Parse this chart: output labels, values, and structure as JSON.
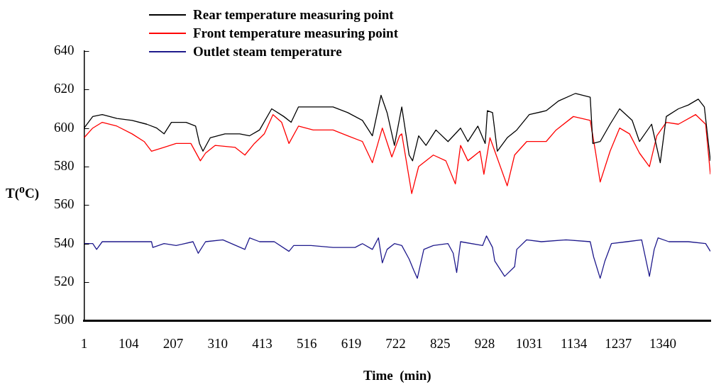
{
  "chart_data": {
    "type": "line",
    "xlabel": "Time  (min)",
    "ylabel": "T($^{o}$C)",
    "xlim": [
      1,
      1450
    ],
    "xticks": [
      1,
      104,
      207,
      310,
      413,
      516,
      619,
      722,
      825,
      928,
      1031,
      1134,
      1237,
      1340
    ],
    "ylim": [
      500,
      640
    ],
    "yticks": [
      500,
      520,
      540,
      560,
      580,
      600,
      620,
      640
    ],
    "grid": false,
    "legend": "top left",
    "marker": "none",
    "line_style": "solid",
    "series": [
      {
        "name": "Rear temperature  measuring  point",
        "color": "#000000",
        "x": [
          1,
          21,
          43,
          77,
          112,
          146,
          169,
          186,
          203,
          237,
          259,
          268,
          276,
          293,
          327,
          361,
          384,
          407,
          435,
          463,
          480,
          497,
          531,
          577,
          611,
          645,
          668,
          688,
          702,
          719,
          736,
          753,
          761,
          775,
          792,
          815,
          843,
          872,
          889,
          912,
          929,
          934,
          946,
          957,
          980,
          1002,
          1031,
          1070,
          1098,
          1138,
          1172,
          1178,
          1195,
          1218,
          1240,
          1269,
          1286,
          1314,
          1334,
          1348,
          1376,
          1399,
          1422,
          1436,
          1450
        ],
        "values": [
          600,
          606,
          607,
          605,
          604,
          602,
          600,
          597,
          603,
          603,
          601,
          592,
          588,
          595,
          597,
          597,
          596,
          599,
          610,
          606,
          603,
          611,
          611,
          611,
          608,
          604,
          596,
          617,
          608,
          591,
          611,
          586,
          583,
          596,
          591,
          599,
          593,
          600,
          593,
          601,
          592,
          609,
          608,
          588,
          595,
          599,
          607,
          609,
          614,
          618,
          616,
          592,
          593,
          602,
          610,
          604,
          593,
          602,
          582,
          606,
          610,
          612,
          615,
          611,
          583
        ]
      },
      {
        "name": "Front temperature  measuring  point",
        "color": "#ff0000",
        "x": [
          1,
          21,
          43,
          77,
          112,
          140,
          157,
          186,
          214,
          248,
          270,
          282,
          304,
          350,
          373,
          395,
          418,
          438,
          458,
          475,
          497,
          531,
          577,
          611,
          645,
          668,
          691,
          713,
          731,
          736,
          759,
          775,
          809,
          838,
          860,
          872,
          889,
          917,
          926,
          940,
          980,
          997,
          1025,
          1070,
          1093,
          1133,
          1172,
          1184,
          1195,
          1218,
          1240,
          1263,
          1286,
          1309,
          1326,
          1348,
          1376,
          1416,
          1439,
          1450
        ],
        "values": [
          595,
          600,
          603,
          601,
          597,
          593,
          588,
          590,
          592,
          592,
          583,
          587,
          591,
          590,
          586,
          592,
          597,
          607,
          603,
          592,
          601,
          599,
          599,
          596,
          593,
          582,
          600,
          585,
          596,
          597,
          566,
          580,
          586,
          583,
          571,
          591,
          583,
          588,
          576,
          595,
          570,
          586,
          593,
          593,
          599,
          606,
          604,
          588,
          572,
          588,
          600,
          597,
          587,
          580,
          596,
          603,
          602,
          607,
          602,
          576
        ]
      },
      {
        "name": "Outlet steam temperature",
        "color": "#1f1a8c",
        "x": [
          1,
          21,
          30,
          43,
          157,
          160,
          186,
          214,
          253,
          265,
          282,
          322,
          373,
          384,
          407,
          441,
          475,
          486,
          526,
          577,
          628,
          645,
          668,
          682,
          691,
          702,
          719,
          736,
          753,
          764,
          772,
          787,
          809,
          843,
          855,
          863,
          872,
          923,
          932,
          946,
          951,
          974,
          997,
          1002,
          1025,
          1059,
          1116,
          1172,
          1180,
          1195,
          1206,
          1221,
          1257,
          1291,
          1309,
          1320,
          1329,
          1354,
          1399,
          1439,
          1450
        ],
        "values": [
          540,
          540,
          537,
          541,
          541,
          538,
          540,
          539,
          541,
          535,
          541,
          542,
          537,
          543,
          541,
          541,
          536,
          539,
          539,
          538,
          538,
          540,
          537,
          543,
          530,
          537,
          540,
          539,
          532,
          526,
          522,
          537,
          539,
          540,
          535,
          525,
          541,
          539,
          544,
          538,
          531,
          523,
          528,
          537,
          542,
          541,
          542,
          541,
          533,
          522,
          531,
          540,
          541,
          542,
          523,
          537,
          543,
          541,
          541,
          540,
          536
        ]
      }
    ]
  }
}
